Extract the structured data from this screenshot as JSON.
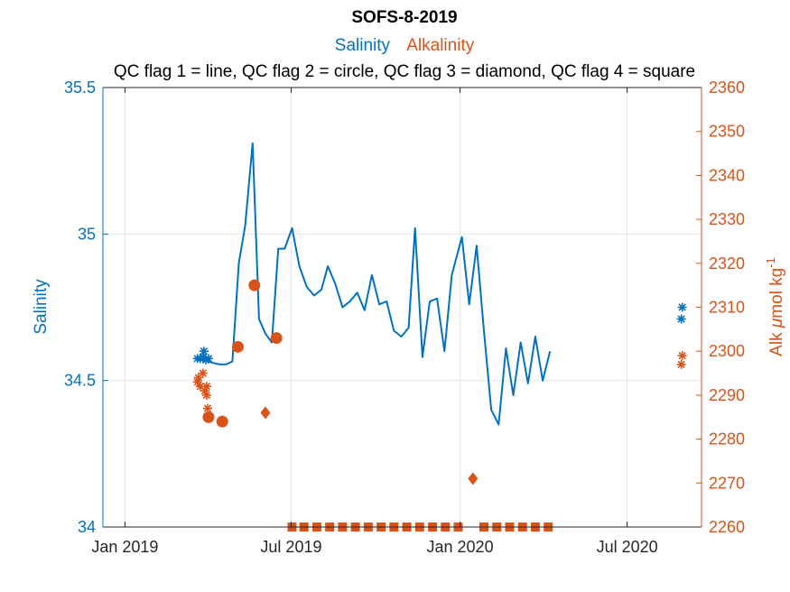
{
  "chart_data": {
    "type": "line",
    "title": "SOFS-8-2019",
    "legend": [
      {
        "name": "Salinity",
        "color": "#0072BD"
      },
      {
        "name": "Alkalinity",
        "color": "#D95319"
      }
    ],
    "subtitle": "QC flag 1 = line, QC flag 2 = circle, QC flag 3 = diamond, QC flag 4 = square",
    "x_axis": {
      "type": "date",
      "range": [
        "2018-12-08",
        "2020-09-20"
      ],
      "ticks": [
        {
          "date": "2019-01-01",
          "label": "Jan 2019"
        },
        {
          "date": "2019-07-01",
          "label": "Jul 2019"
        },
        {
          "date": "2020-01-01",
          "label": "Jan 2020"
        },
        {
          "date": "2020-07-01",
          "label": "Jul 2020"
        }
      ],
      "grid": true
    },
    "y_left": {
      "label": "Salinity",
      "color": "#0072BD",
      "range": [
        34,
        35.5
      ],
      "ticks": [
        {
          "value": 34,
          "label": "34"
        },
        {
          "value": 34.5,
          "label": "34.5"
        },
        {
          "value": 35,
          "label": "35"
        },
        {
          "value": 35.5,
          "label": "35.5"
        }
      ]
    },
    "y_right": {
      "label_main": "Alk ",
      "label_mu": "μ",
      "label_rest": "mol kg",
      "label_sup": "-1",
      "color": "#D95319",
      "range": [
        2260,
        2360
      ],
      "ticks": [
        {
          "value": 2260,
          "label": "2260"
        },
        {
          "value": 2270,
          "label": "2270"
        },
        {
          "value": 2280,
          "label": "2280"
        },
        {
          "value": 2290,
          "label": "2290"
        },
        {
          "value": 2300,
          "label": "2300"
        },
        {
          "value": 2310,
          "label": "2310"
        },
        {
          "value": 2320,
          "label": "2320"
        },
        {
          "value": 2330,
          "label": "2330"
        },
        {
          "value": 2340,
          "label": "2340"
        },
        {
          "value": 2350,
          "label": "2350"
        },
        {
          "value": 2360,
          "label": "2360"
        }
      ]
    },
    "series": [
      {
        "name": "Salinity",
        "axis": "left",
        "kind": "line",
        "color": "#0072BD",
        "points": [
          [
            "2019-03-23",
            34.57
          ],
          [
            "2019-03-28",
            34.57
          ],
          [
            "2019-04-02",
            34.565
          ],
          [
            "2019-04-07",
            34.56
          ],
          [
            "2019-04-14",
            34.555
          ],
          [
            "2019-04-21",
            34.555
          ],
          [
            "2019-04-28",
            34.565
          ],
          [
            "2019-05-05",
            34.9
          ],
          [
            "2019-05-12",
            35.03
          ],
          [
            "2019-05-20",
            35.31
          ],
          [
            "2019-05-27",
            34.71
          ],
          [
            "2019-06-03",
            34.66
          ],
          [
            "2019-06-10",
            34.63
          ],
          [
            "2019-06-17",
            34.95
          ],
          [
            "2019-06-24",
            34.95
          ],
          [
            "2019-07-02",
            35.02
          ],
          [
            "2019-07-10",
            34.89
          ],
          [
            "2019-07-18",
            34.82
          ],
          [
            "2019-07-26",
            34.79
          ],
          [
            "2019-08-03",
            34.81
          ],
          [
            "2019-08-10",
            34.89
          ],
          [
            "2019-08-18",
            34.83
          ],
          [
            "2019-08-26",
            34.75
          ],
          [
            "2019-09-03",
            34.77
          ],
          [
            "2019-09-11",
            34.8
          ],
          [
            "2019-09-19",
            34.74
          ],
          [
            "2019-09-27",
            34.86
          ],
          [
            "2019-10-05",
            34.76
          ],
          [
            "2019-10-13",
            34.77
          ],
          [
            "2019-10-21",
            34.67
          ],
          [
            "2019-10-29",
            34.65
          ],
          [
            "2019-11-06",
            34.68
          ],
          [
            "2019-11-13",
            35.02
          ],
          [
            "2019-11-21",
            34.58
          ],
          [
            "2019-11-29",
            34.77
          ],
          [
            "2019-12-07",
            34.78
          ],
          [
            "2019-12-15",
            34.6
          ],
          [
            "2019-12-23",
            34.86
          ],
          [
            "2020-01-03",
            34.99
          ],
          [
            "2020-01-11",
            34.76
          ],
          [
            "2020-01-19",
            34.96
          ],
          [
            "2020-01-27",
            34.67
          ],
          [
            "2020-02-04",
            34.4
          ],
          [
            "2020-02-12",
            34.35
          ],
          [
            "2020-02-20",
            34.61
          ],
          [
            "2020-02-28",
            34.45
          ],
          [
            "2020-03-07",
            34.63
          ],
          [
            "2020-03-15",
            34.49
          ],
          [
            "2020-03-23",
            34.65
          ],
          [
            "2020-03-31",
            34.5
          ],
          [
            "2020-04-08",
            34.6
          ]
        ]
      },
      {
        "name": "Salinity",
        "axis": "left",
        "kind": "asterisk",
        "color": "#0072BD",
        "points": [
          [
            "2019-03-21",
            34.575
          ],
          [
            "2019-03-24",
            34.575
          ],
          [
            "2019-03-27",
            34.58
          ],
          [
            "2019-03-28",
            34.6
          ],
          [
            "2019-03-30",
            34.57
          ],
          [
            "2019-04-02",
            34.575
          ],
          [
            "2020-08-30",
            34.75
          ],
          [
            "2020-08-29",
            34.71
          ]
        ]
      },
      {
        "name": "Alkalinity",
        "axis": "right",
        "kind": "asterisk",
        "color": "#D95319",
        "points": [
          [
            "2019-03-21",
            2293
          ],
          [
            "2019-03-22",
            2294
          ],
          [
            "2019-03-24",
            2292
          ],
          [
            "2019-03-27",
            2295
          ],
          [
            "2019-03-29",
            2291
          ],
          [
            "2019-03-31",
            2292
          ],
          [
            "2019-03-31",
            2290
          ],
          [
            "2019-04-01",
            2287
          ],
          [
            "2020-08-29",
            2297
          ],
          [
            "2020-08-30",
            2299
          ]
        ]
      },
      {
        "name": "Alkalinity",
        "axis": "right",
        "kind": "circle",
        "color": "#D95319",
        "points": [
          [
            "2019-04-02",
            2285
          ],
          [
            "2019-04-17",
            2284
          ],
          [
            "2019-05-04",
            2301
          ],
          [
            "2019-05-22",
            2315
          ],
          [
            "2019-06-15",
            2303
          ]
        ]
      },
      {
        "name": "Alkalinity",
        "axis": "right",
        "kind": "diamond",
        "color": "#D95319",
        "points": [
          [
            "2019-06-03",
            2286
          ],
          [
            "2020-01-15",
            2271
          ]
        ]
      },
      {
        "name": "Alkalinity",
        "axis": "right",
        "kind": "square",
        "color": "#D95319",
        "points": [
          [
            "2019-07-02",
            2260
          ],
          [
            "2019-07-15",
            2260
          ],
          [
            "2019-07-29",
            2260
          ],
          [
            "2019-08-12",
            2260
          ],
          [
            "2019-08-26",
            2260
          ],
          [
            "2019-09-09",
            2260
          ],
          [
            "2019-09-23",
            2260
          ],
          [
            "2019-10-07",
            2260
          ],
          [
            "2019-10-21",
            2260
          ],
          [
            "2019-11-04",
            2260
          ],
          [
            "2019-11-18",
            2260
          ],
          [
            "2019-12-02",
            2260
          ],
          [
            "2019-12-16",
            2260
          ],
          [
            "2019-12-30",
            2260
          ],
          [
            "2020-01-27",
            2260
          ],
          [
            "2020-02-10",
            2260
          ],
          [
            "2020-02-24",
            2260
          ],
          [
            "2020-03-09",
            2260
          ],
          [
            "2020-03-23",
            2260
          ],
          [
            "2020-04-06",
            2260
          ]
        ]
      }
    ]
  }
}
